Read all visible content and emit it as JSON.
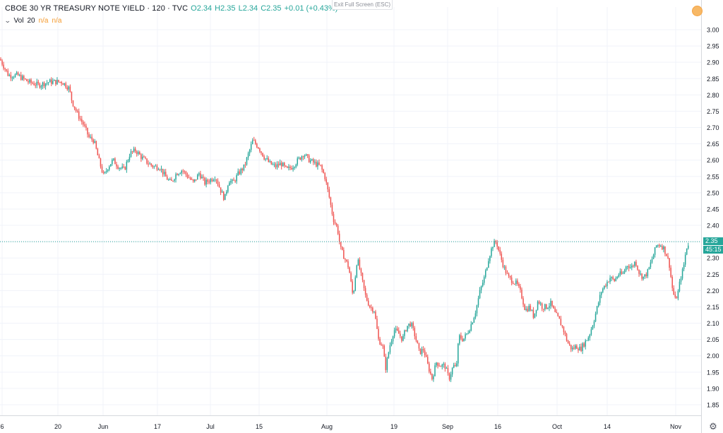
{
  "header": {
    "title": "CBOE 30 YR TREASURY NOTE YIELD · 120 · TVC",
    "ohlc": {
      "o": "O2.34",
      "h": "H2.35",
      "l": "L2.34",
      "c": "C2.35",
      "chg": "+0.01 (+0.43%)"
    },
    "volume": {
      "label": "Vol",
      "period": "20",
      "v1": "n/a",
      "v2": "n/a"
    }
  },
  "exit_fullscreen_label": "Exit Full Screen (ESC)",
  "status_color": "#f7b866",
  "chart_data": {
    "type": "candlestick",
    "up_color": "#26a69a",
    "down_color": "#ef5350",
    "y_ticks": [
      "3.00",
      "2.95",
      "2.90",
      "2.85",
      "2.80",
      "2.75",
      "2.70",
      "2.65",
      "2.60",
      "2.55",
      "2.50",
      "2.45",
      "2.40",
      "2.35",
      "2.30",
      "2.25",
      "2.20",
      "2.15",
      "2.10",
      "2.05",
      "2.00",
      "1.95",
      "1.90",
      "1.85"
    ],
    "x_ticks": [
      "6",
      "20",
      "Jun",
      "17",
      "Jul",
      "15",
      "Aug",
      "19",
      "Sep",
      "16",
      "Oct",
      "14",
      "Nov"
    ],
    "ylim": [
      1.82,
      3.03
    ],
    "last_price": "2.35",
    "countdown": "45:15",
    "grid": true,
    "path_points": [
      [
        0,
        2.91
      ],
      [
        12,
        2.86
      ],
      [
        25,
        2.86
      ],
      [
        40,
        2.84
      ],
      [
        55,
        2.83
      ],
      [
        70,
        2.84
      ],
      [
        88,
        2.84
      ],
      [
        98,
        2.82
      ],
      [
        102,
        2.78
      ],
      [
        110,
        2.74
      ],
      [
        118,
        2.71
      ],
      [
        126,
        2.67
      ],
      [
        133,
        2.66
      ],
      [
        140,
        2.6
      ],
      [
        147,
        2.55
      ],
      [
        153,
        2.58
      ],
      [
        160,
        2.6
      ],
      [
        168,
        2.58
      ],
      [
        176,
        2.57
      ],
      [
        184,
        2.62
      ],
      [
        192,
        2.63
      ],
      [
        200,
        2.61
      ],
      [
        210,
        2.59
      ],
      [
        218,
        2.58
      ],
      [
        226,
        2.58
      ],
      [
        234,
        2.55
      ],
      [
        242,
        2.53
      ],
      [
        250,
        2.56
      ],
      [
        258,
        2.57
      ],
      [
        266,
        2.55
      ],
      [
        274,
        2.53
      ],
      [
        282,
        2.56
      ],
      [
        290,
        2.53
      ],
      [
        298,
        2.54
      ],
      [
        305,
        2.55
      ],
      [
        312,
        2.51
      ],
      [
        318,
        2.48
      ],
      [
        324,
        2.54
      ],
      [
        330,
        2.53
      ],
      [
        338,
        2.56
      ],
      [
        346,
        2.58
      ],
      [
        352,
        2.62
      ],
      [
        358,
        2.66
      ],
      [
        366,
        2.64
      ],
      [
        374,
        2.61
      ],
      [
        382,
        2.59
      ],
      [
        390,
        2.58
      ],
      [
        398,
        2.59
      ],
      [
        406,
        2.57
      ],
      [
        414,
        2.58
      ],
      [
        422,
        2.6
      ],
      [
        430,
        2.62
      ],
      [
        438,
        2.6
      ],
      [
        446,
        2.59
      ],
      [
        454,
        2.58
      ],
      [
        460,
        2.55
      ],
      [
        466,
        2.49
      ],
      [
        472,
        2.42
      ],
      [
        478,
        2.39
      ],
      [
        482,
        2.33
      ],
      [
        488,
        2.3
      ],
      [
        494,
        2.27
      ],
      [
        500,
        2.18
      ],
      [
        506,
        2.3
      ],
      [
        512,
        2.24
      ],
      [
        518,
        2.18
      ],
      [
        524,
        2.15
      ],
      [
        530,
        2.14
      ],
      [
        536,
        2.05
      ],
      [
        542,
        2.03
      ],
      [
        546,
        1.96
      ],
      [
        552,
        2.03
      ],
      [
        558,
        2.08
      ],
      [
        564,
        2.07
      ],
      [
        570,
        2.05
      ],
      [
        576,
        2.09
      ],
      [
        582,
        2.1
      ],
      [
        588,
        2.06
      ],
      [
        594,
        2.01
      ],
      [
        600,
        2.02
      ],
      [
        606,
        1.97
      ],
      [
        612,
        1.93
      ],
      [
        618,
        1.98
      ],
      [
        624,
        1.97
      ],
      [
        630,
        1.97
      ],
      [
        636,
        1.93
      ],
      [
        642,
        1.97
      ],
      [
        646,
        1.96
      ],
      [
        650,
        2.06
      ],
      [
        656,
        2.05
      ],
      [
        662,
        2.07
      ],
      [
        668,
        2.1
      ],
      [
        674,
        2.14
      ],
      [
        680,
        2.2
      ],
      [
        686,
        2.24
      ],
      [
        692,
        2.3
      ],
      [
        698,
        2.34
      ],
      [
        703,
        2.35
      ],
      [
        708,
        2.31
      ],
      [
        714,
        2.27
      ],
      [
        720,
        2.24
      ],
      [
        726,
        2.23
      ],
      [
        732,
        2.22
      ],
      [
        738,
        2.19
      ],
      [
        744,
        2.14
      ],
      [
        750,
        2.15
      ],
      [
        756,
        2.12
      ],
      [
        762,
        2.17
      ],
      [
        768,
        2.15
      ],
      [
        774,
        2.15
      ],
      [
        780,
        2.16
      ],
      [
        786,
        2.13
      ],
      [
        792,
        2.11
      ],
      [
        798,
        2.08
      ],
      [
        804,
        2.04
      ],
      [
        810,
        2.02
      ],
      [
        816,
        2.03
      ],
      [
        822,
        2.02
      ],
      [
        828,
        2.04
      ],
      [
        834,
        2.06
      ],
      [
        840,
        2.1
      ],
      [
        846,
        2.15
      ],
      [
        852,
        2.2
      ],
      [
        858,
        2.22
      ],
      [
        864,
        2.24
      ],
      [
        870,
        2.23
      ],
      [
        876,
        2.25
      ],
      [
        882,
        2.25
      ],
      [
        888,
        2.28
      ],
      [
        894,
        2.27
      ],
      [
        900,
        2.29
      ],
      [
        906,
        2.25
      ],
      [
        912,
        2.24
      ],
      [
        918,
        2.26
      ],
      [
        924,
        2.3
      ],
      [
        930,
        2.34
      ],
      [
        936,
        2.34
      ],
      [
        940,
        2.33
      ],
      [
        944,
        2.31
      ],
      [
        948,
        2.28
      ],
      [
        952,
        2.21
      ],
      [
        956,
        2.17
      ],
      [
        960,
        2.19
      ],
      [
        964,
        2.24
      ],
      [
        968,
        2.27
      ],
      [
        972,
        2.33
      ],
      [
        976,
        2.35
      ]
    ]
  }
}
